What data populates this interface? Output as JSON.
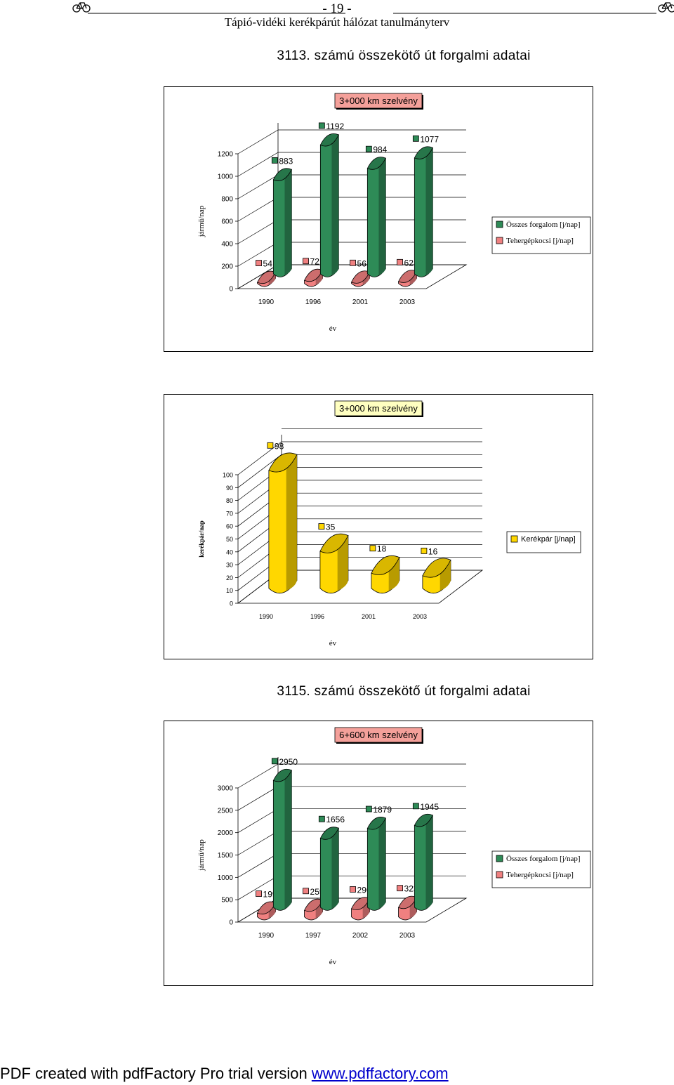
{
  "header": {
    "page": "- 19 -",
    "subtitle": "Tápió-vidéki kerékpárút hálózat tanulmányterv"
  },
  "sections": [
    {
      "title": "3113. számú összekötő út forgalmi adatai"
    },
    {
      "title": "3115. számú összekötő út forgalmi adatai"
    }
  ],
  "footer": {
    "text": "PDF created with pdfFactory Pro trial version ",
    "link": "www.pdffactory.com"
  },
  "chart_data": [
    {
      "type": "bar",
      "title": "3+000 km szelvény",
      "xlabel": "év",
      "ylabel": "jármű/nap",
      "categories": [
        "1990",
        "1996",
        "2001",
        "2003"
      ],
      "ylim": [
        0,
        1200
      ],
      "yticks": [
        "0",
        "200",
        "400",
        "600",
        "800",
        "1000",
        "1200"
      ],
      "series": [
        {
          "name": "Összes forgalom [j/nap]",
          "values": [
            883,
            1192,
            984,
            1077
          ],
          "color": "#2e8b57"
        },
        {
          "name": "Tehergépkocsi [j/nap]",
          "values": [
            54,
            72,
            56,
            62
          ],
          "color": "#f08080"
        }
      ],
      "title_bg": "#f4a09a",
      "legend": "right"
    },
    {
      "type": "bar",
      "title": "3+000 km szelvény",
      "xlabel": "év",
      "ylabel": "kerékpár/nap",
      "categories": [
        "1990",
        "1996",
        "2001",
        "2003"
      ],
      "ylim": [
        0,
        100
      ],
      "yticks": [
        "0",
        "10",
        "20",
        "30",
        "40",
        "50",
        "60",
        "70",
        "80",
        "90",
        "100"
      ],
      "series": [
        {
          "name": "Kerékpár [j/nap]",
          "values": [
            98,
            35,
            18,
            16
          ],
          "color": "#ffd700"
        }
      ],
      "title_bg": "#ffffc0",
      "legend": "right"
    },
    {
      "type": "bar",
      "title": "6+600 km szelvény",
      "xlabel": "év",
      "ylabel": "jármű/nap",
      "categories": [
        "1990",
        "1997",
        "2002",
        "2003"
      ],
      "ylim": [
        0,
        3000
      ],
      "yticks": [
        "0",
        "500",
        "1000",
        "1500",
        "2000",
        "2500",
        "3000"
      ],
      "series": [
        {
          "name": "Összes forgalom [j/nap]",
          "values": [
            2950,
            1656,
            1879,
            1945
          ],
          "color": "#2e8b57"
        },
        {
          "name": "Tehergépkocsi [j/nap]",
          "values": [
            199,
            259,
            296,
            323
          ],
          "color": "#f08080"
        }
      ],
      "title_bg": "#f4a09a",
      "legend": "right"
    }
  ]
}
